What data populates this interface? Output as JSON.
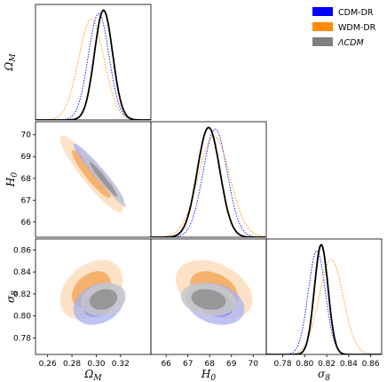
{
  "chart_data": {
    "type": "corner",
    "parameters": [
      {
        "key": "om",
        "label": "Ω",
        "sub": "M",
        "range": [
          0.25,
          0.345
        ],
        "ticks": [
          "0.26",
          "0.28",
          "0.30",
          "0.32"
        ]
      },
      {
        "key": "h0",
        "label": "H",
        "sub": "0",
        "range": [
          65.3,
          70.6
        ],
        "ticks": [
          "66",
          "67",
          "68",
          "69",
          "70"
        ]
      },
      {
        "key": "s8",
        "label": "σ",
        "sub": "8",
        "range": [
          0.765,
          0.87
        ],
        "ticks": [
          "0.78",
          "0.80",
          "0.82",
          "0.84",
          "0.86"
        ],
        "ticks_x": [
          "0.78",
          "0.80",
          "0.82",
          "0.84",
          "0.86"
        ]
      }
    ],
    "legend": {
      "placement": "top-right",
      "entries": [
        {
          "label": "CDM-DR",
          "color": "#0000ff"
        },
        {
          "label": "WDM-DR",
          "color": "#ff8c00"
        },
        {
          "label": "ΛCDM",
          "color": "#808080",
          "italic": true
        }
      ]
    },
    "series": [
      {
        "name": "CDM-DR",
        "color": "#0000ff",
        "line": "dotted",
        "mean": {
          "om": 0.302,
          "h0": 68.25,
          "s8": 0.811
        },
        "sd": {
          "om": 0.0085,
          "h0": 0.55,
          "s8": 0.0078
        },
        "corr": {
          "om_h0": -0.96,
          "om_s8": 0.25,
          "h0_s8": -0.25
        }
      },
      {
        "name": "WDM-DR",
        "color": "#ff8c00",
        "line": "dotted",
        "mean": {
          "om": 0.296,
          "h0": 68.2,
          "s8": 0.824
        },
        "sd": {
          "om": 0.0105,
          "h0": 0.72,
          "s8": 0.011
        },
        "corr": {
          "om_h0": -0.92,
          "om_s8": 0.35,
          "h0_s8": -0.35
        }
      },
      {
        "name": "ΛCDM",
        "color": "#808080",
        "line": "solid",
        "mean": {
          "om": 0.306,
          "h0": 67.95,
          "s8": 0.815
        },
        "sd": {
          "om": 0.0075,
          "h0": 0.52,
          "s8": 0.0062
        },
        "corr": {
          "om_h0": -0.97,
          "om_s8": 0.2,
          "h0_s8": -0.2
        }
      }
    ]
  }
}
